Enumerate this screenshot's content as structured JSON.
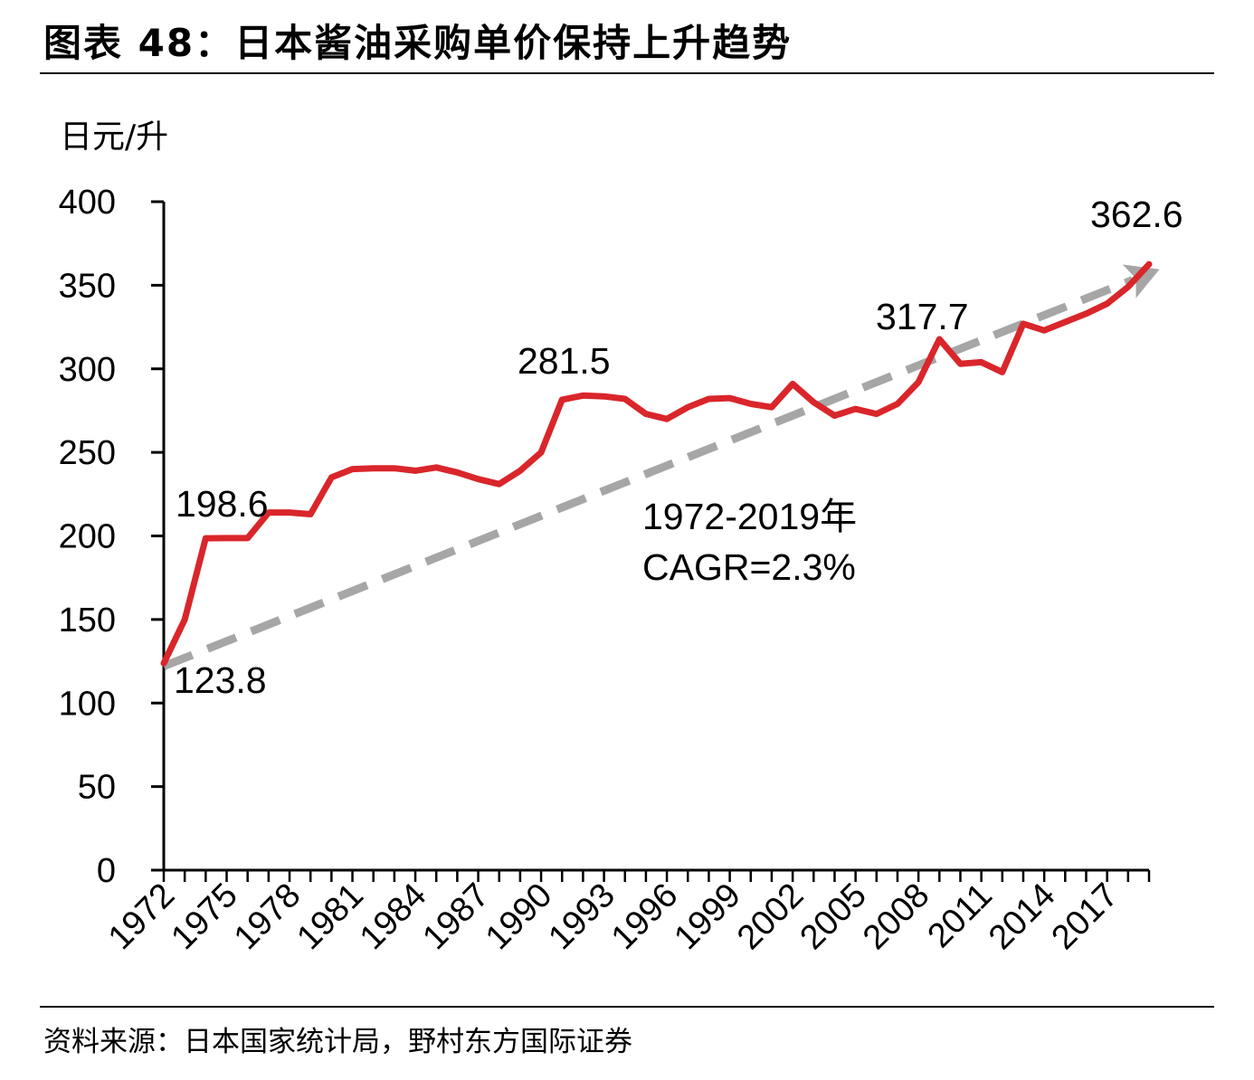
{
  "header": {
    "title": "图表 48：日本酱油采购单价保持上升趋势"
  },
  "footer": {
    "source": "资料来源：日本国家统计局，野村东方国际证券"
  },
  "colors": {
    "line": "#d9262b",
    "trend": "#a6a6a6",
    "axis": "#000000"
  },
  "chart_data": {
    "type": "line",
    "title": "日本酱油采购单价保持上升趋势",
    "ylabel": "日元/升",
    "xlabel": "",
    "ylim": [
      0,
      400
    ],
    "yticks": [
      0,
      50,
      100,
      150,
      200,
      250,
      300,
      350,
      400
    ],
    "x": [
      1972,
      1973,
      1974,
      1975,
      1976,
      1977,
      1978,
      1979,
      1980,
      1981,
      1982,
      1983,
      1984,
      1985,
      1986,
      1987,
      1988,
      1989,
      1990,
      1991,
      1992,
      1993,
      1994,
      1995,
      1996,
      1997,
      1998,
      1999,
      2000,
      2001,
      2002,
      2003,
      2004,
      2005,
      2006,
      2007,
      2008,
      2009,
      2010,
      2011,
      2012,
      2013,
      2014,
      2015,
      2016,
      2017,
      2018,
      2019
    ],
    "xtick_labels": [
      "1972",
      "1975",
      "1978",
      "1981",
      "1984",
      "1987",
      "1990",
      "1993",
      "1996",
      "1999",
      "2002",
      "2005",
      "2008",
      "2011",
      "2014",
      "2017"
    ],
    "series": [
      {
        "name": "日本酱油采购单价",
        "values": [
          123.8,
          150,
          198.6,
          198.7,
          198.7,
          214,
          214,
          213,
          235,
          240,
          240.5,
          240.5,
          239,
          241,
          238,
          234,
          231,
          239,
          250,
          281.5,
          284,
          283.5,
          282,
          273,
          270,
          277,
          282,
          282.5,
          279,
          277,
          291,
          280,
          272,
          276,
          273,
          279,
          292,
          317.7,
          303,
          304,
          298,
          327,
          323,
          328,
          333,
          339,
          349,
          362.6
        ]
      }
    ],
    "annotations": [
      {
        "text": "123.8",
        "x": 1972,
        "y": 123.8
      },
      {
        "text": "198.6",
        "x": 1974,
        "y": 198.6
      },
      {
        "text": "281.5",
        "x": 1991,
        "y": 281.5
      },
      {
        "text": "317.7",
        "x": 2009,
        "y": 317.7
      },
      {
        "text": "362.6",
        "x": 2019,
        "y": 362.6
      },
      {
        "text": "1972-2019年"
      },
      {
        "text": "CAGR=2.3%"
      }
    ],
    "trend": {
      "from": [
        1972,
        122
      ],
      "to": [
        2019,
        360
      ]
    },
    "legend": "none",
    "grid": false
  }
}
